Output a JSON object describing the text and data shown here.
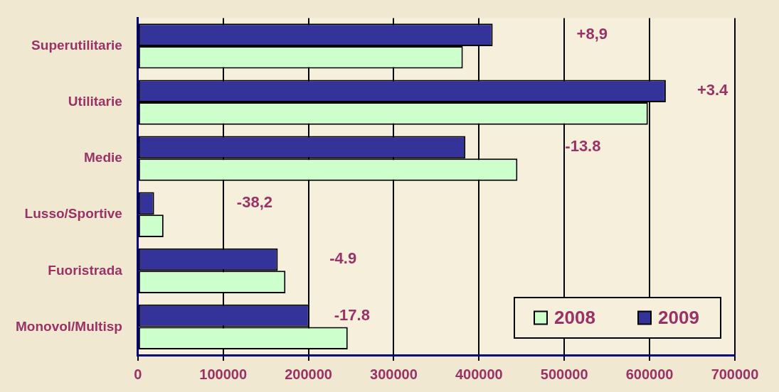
{
  "chart_data": {
    "type": "bar",
    "orientation": "horizontal",
    "categories": [
      "Superutilitarie",
      "Utilitarie",
      "Medie",
      "Lusso/Sportive",
      "Fuoristrada",
      "Monovol/Multisp"
    ],
    "series": [
      {
        "name": "2008",
        "color": "#ccffcc",
        "values": [
          381000,
          598000,
          445000,
          30000,
          173000,
          246000
        ]
      },
      {
        "name": "2009",
        "color": "#333399",
        "values": [
          416000,
          619000,
          384000,
          19000,
          164000,
          201000
        ]
      }
    ],
    "xlim": [
      0,
      700000
    ],
    "xticks": [
      0,
      100000,
      200000,
      300000,
      400000,
      500000,
      600000,
      700000
    ],
    "grid": "x",
    "legend": "bottom right",
    "annotations": [
      "+8,9",
      "+3.4",
      "-13.8",
      "-38,2",
      "-4.9",
      "-17.8"
    ]
  }
}
